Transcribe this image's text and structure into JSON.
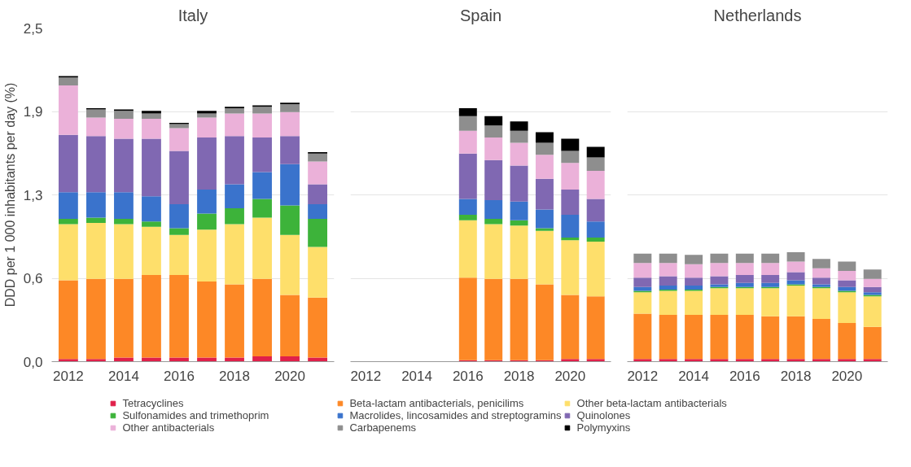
{
  "chart_data": [
    {
      "type": "bar",
      "title": "Italy",
      "ylabel": "DDD per 1 000 inhabitants per day (%)",
      "stacked": true,
      "grid": "y",
      "legend": "bottom",
      "x": [
        2012,
        2013,
        2014,
        2015,
        2016,
        2017,
        2018,
        2019,
        2020,
        2021
      ],
      "xlim": [
        2011.4,
        2021.6
      ],
      "xticks": [
        2012,
        2014,
        2016,
        2018,
        2020
      ],
      "ylim": [
        0,
        2.5
      ],
      "yticks": [
        {
          "value": 0,
          "label": "0,0"
        },
        {
          "value": 0.625,
          "label": "0,6"
        },
        {
          "value": 1.25,
          "label": "1,3"
        },
        {
          "value": 1.875,
          "label": "1,9"
        },
        {
          "value": 2.5,
          "label": "2,5"
        }
      ],
      "series": [
        {
          "name": "Tetracyclines",
          "color": "#e0204a",
          "values": [
            0.02,
            0.02,
            0.03,
            0.03,
            0.03,
            0.03,
            0.03,
            0.04,
            0.04,
            0.03
          ]
        },
        {
          "name": "Beta-lactam antibacterials, penicilims",
          "color": "#fd8826",
          "values": [
            0.59,
            0.6,
            0.59,
            0.62,
            0.62,
            0.57,
            0.55,
            0.58,
            0.46,
            0.45
          ]
        },
        {
          "name": "Other beta-lactam antibacterials",
          "color": "#fedf6b",
          "values": [
            0.42,
            0.42,
            0.41,
            0.36,
            0.3,
            0.39,
            0.45,
            0.46,
            0.45,
            0.38
          ]
        },
        {
          "name": "Sulfonamides and trimethoprim",
          "color": "#3db33a",
          "values": [
            0.04,
            0.04,
            0.04,
            0.04,
            0.05,
            0.12,
            0.12,
            0.14,
            0.22,
            0.21
          ]
        },
        {
          "name": "Macrolides, lincosamides and streptogramins",
          "color": "#3a73cc",
          "values": [
            0.2,
            0.19,
            0.2,
            0.19,
            0.18,
            0.18,
            0.18,
            0.2,
            0.31,
            0.11
          ]
        },
        {
          "name": "Quinolones",
          "color": "#8068b2",
          "values": [
            0.43,
            0.42,
            0.4,
            0.43,
            0.4,
            0.39,
            0.36,
            0.26,
            0.21,
            0.15
          ]
        },
        {
          "name": "Other antibacterials",
          "color": "#ebb1d9",
          "values": [
            0.37,
            0.14,
            0.15,
            0.15,
            0.17,
            0.15,
            0.17,
            0.18,
            0.18,
            0.17
          ]
        },
        {
          "name": "Carbapenems",
          "color": "#8e8e8e",
          "values": [
            0.06,
            0.06,
            0.06,
            0.04,
            0.03,
            0.03,
            0.04,
            0.05,
            0.06,
            0.06
          ]
        },
        {
          "name": "Polymyxins",
          "color": "#000000",
          "values": [
            0.01,
            0.01,
            0.01,
            0.02,
            0.01,
            0.02,
            0.01,
            0.01,
            0.01,
            0.01
          ]
        }
      ]
    },
    {
      "type": "bar",
      "title": "Spain",
      "stacked": true,
      "grid": "y",
      "tick_labels": "x",
      "x": [
        2016,
        2017,
        2018,
        2019,
        2020,
        2021
      ],
      "xlim": [
        2011.4,
        2021.6
      ],
      "xticks": [
        2012,
        2014,
        2016,
        2018,
        2020
      ],
      "ylim": [
        0,
        2.5
      ],
      "yticks": [
        {
          "value": 0,
          "label": null
        },
        {
          "value": 0.625,
          "label": null
        },
        {
          "value": 1.25,
          "label": null
        },
        {
          "value": 1.875,
          "label": null
        },
        {
          "value": 2.5,
          "label": null
        }
      ],
      "series": [
        {
          "color": "#e0204a",
          "values": [
            0.01,
            0.01,
            0.01,
            0.01,
            0.02,
            0.02
          ]
        },
        {
          "color": "#fd8826",
          "values": [
            0.62,
            0.61,
            0.61,
            0.57,
            0.48,
            0.47
          ]
        },
        {
          "color": "#fedf6b",
          "values": [
            0.43,
            0.41,
            0.4,
            0.4,
            0.41,
            0.41
          ]
        },
        {
          "color": "#3db33a",
          "values": [
            0.04,
            0.04,
            0.04,
            0.02,
            0.02,
            0.03
          ]
        },
        {
          "color": "#3a73cc",
          "values": [
            0.12,
            0.14,
            0.14,
            0.14,
            0.17,
            0.12
          ]
        },
        {
          "color": "#8068b2",
          "values": [
            0.34,
            0.3,
            0.27,
            0.23,
            0.19,
            0.17
          ]
        },
        {
          "color": "#ebb1d9",
          "values": [
            0.17,
            0.17,
            0.17,
            0.18,
            0.2,
            0.21
          ]
        },
        {
          "color": "#8e8e8e",
          "values": [
            0.11,
            0.09,
            0.09,
            0.09,
            0.09,
            0.1
          ]
        },
        {
          "color": "#000000",
          "values": [
            0.06,
            0.07,
            0.07,
            0.08,
            0.09,
            0.08
          ]
        }
      ]
    },
    {
      "type": "bar",
      "title": "Netherlands",
      "stacked": true,
      "grid": "y",
      "tick_labels": "x",
      "x": [
        2012,
        2013,
        2014,
        2015,
        2016,
        2017,
        2018,
        2019,
        2020,
        2021
      ],
      "xlim": [
        2011.4,
        2021.6
      ],
      "xticks": [
        2012,
        2014,
        2016,
        2018,
        2020
      ],
      "ylim": [
        0,
        2.5
      ],
      "yticks": [
        {
          "value": 0,
          "label": null
        },
        {
          "value": 0.625,
          "label": null
        },
        {
          "value": 1.25,
          "label": null
        },
        {
          "value": 1.875,
          "label": null
        },
        {
          "value": 2.5,
          "label": null
        }
      ],
      "series": [
        {
          "color": "#e0204a",
          "values": [
            0.02,
            0.02,
            0.02,
            0.02,
            0.02,
            0.02,
            0.02,
            0.02,
            0.02,
            0.02
          ]
        },
        {
          "color": "#fd8826",
          "values": [
            0.34,
            0.33,
            0.33,
            0.33,
            0.33,
            0.32,
            0.32,
            0.3,
            0.27,
            0.24
          ]
        },
        {
          "color": "#fedf6b",
          "values": [
            0.16,
            0.18,
            0.18,
            0.2,
            0.2,
            0.21,
            0.23,
            0.23,
            0.23,
            0.23
          ]
        },
        {
          "color": "#3db33a",
          "values": [
            0.01,
            0.01,
            0.01,
            0.01,
            0.01,
            0.01,
            0.01,
            0.01,
            0.01,
            0.01
          ]
        },
        {
          "color": "#3a73cc",
          "values": [
            0.03,
            0.03,
            0.03,
            0.02,
            0.03,
            0.03,
            0.03,
            0.02,
            0.03,
            0.02
          ]
        },
        {
          "color": "#8068b2",
          "values": [
            0.07,
            0.07,
            0.06,
            0.06,
            0.06,
            0.06,
            0.06,
            0.05,
            0.05,
            0.04
          ]
        },
        {
          "color": "#ebb1d9",
          "values": [
            0.11,
            0.1,
            0.1,
            0.1,
            0.09,
            0.09,
            0.08,
            0.07,
            0.07,
            0.06
          ]
        },
        {
          "color": "#8e8e8e",
          "values": [
            0.07,
            0.07,
            0.07,
            0.07,
            0.07,
            0.07,
            0.07,
            0.07,
            0.07,
            0.07
          ]
        }
      ]
    }
  ]
}
